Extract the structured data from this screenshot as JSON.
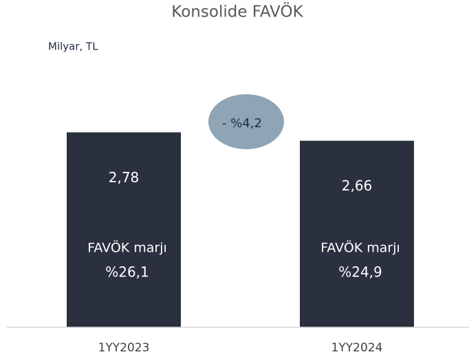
{
  "chart_data": {
    "type": "bar",
    "title": "Konsolide FAVÖK",
    "subtitle": "Milyar, TL",
    "categories": [
      "1YY2023",
      "1YY2024"
    ],
    "values": [
      2.78,
      2.66
    ],
    "value_labels": [
      "2,78",
      "2,66"
    ],
    "color": "#2b303f",
    "margin_label": "FAVÖK marjı",
    "margin_value_labels": [
      "%26,1",
      "%24,9"
    ],
    "change_label": "- %4,2",
    "change_color": "#8fa5b5"
  }
}
